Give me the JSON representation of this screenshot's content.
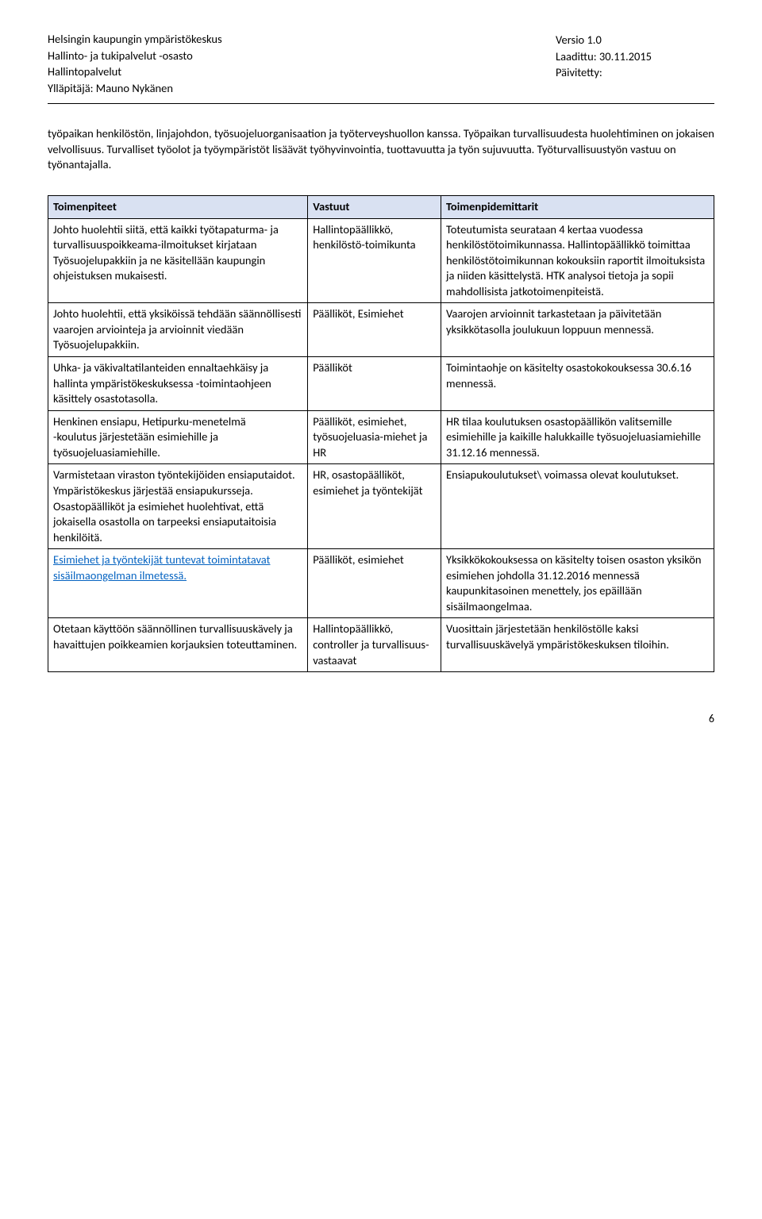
{
  "header": {
    "left": [
      "Helsingin kaupungin ympäristökeskus",
      "Hallinto- ja tukipalvelut -osasto",
      "Hallintopalvelut",
      "Ylläpitäjä: Mauno Nykänen"
    ],
    "right": [
      "",
      "Versio 1.0",
      "Laadittu: 30.11.2015",
      "Päivitetty:"
    ]
  },
  "intro": "työpaikan henkilöstön, linjajohdon, työsuojeluorganisaation ja työterveyshuollon kanssa. Työpaikan turvallisuudesta huolehtiminen on jokaisen velvollisuus. Turvalliset työolot ja työympäristöt lisäävät työhyvinvointia, tuottavuutta ja työn sujuvuutta. Työturvallisuustyön vastuu on työnantajalla.",
  "table": {
    "headers": [
      "Toimenpiteet",
      "Vastuut",
      "Toimenpidemittarit"
    ],
    "rows": [
      {
        "a": "Johto huolehtii siitä, että kaikki työtapaturma- ja turvallisuuspoikkeama-ilmoitukset kirjataan Työsuojelupakkiin ja ne käsitellään kaupungin ohjeistuksen mukaisesti.",
        "b": "Hallintopäällikkö, henkilöstö-toimikunta",
        "c": "Toteutumista seurataan 4 kertaa vuodessa henkilöstötoimikunnassa. Hallintopäällikkö toimittaa henkilöstötoimikunnan kokouksiin raportit ilmoituksista ja niiden käsittelystä. HTK analysoi tietoja ja sopii mahdollisista jatkotoimenpiteistä."
      },
      {
        "a": "Johto huolehtii, että yksiköissä tehdään säännöllisesti vaarojen arviointeja ja arvioinnit viedään Työsuojelupakkiin.",
        "b": "Päälliköt, Esimiehet",
        "c": "Vaarojen arvioinnit tarkastetaan ja päivitetään yksikkötasolla joulukuun loppuun mennessä."
      },
      {
        "a": "Uhka- ja väkivaltatilanteiden ennaltaehkäisy ja hallinta ympäristökeskuksessa -toimintaohjeen käsittely osastotasolla.",
        "b": "Päälliköt",
        "c": "Toimintaohje on käsitelty osastokokouksessa 30.6.16 mennessä."
      },
      {
        "a": "Henkinen ensiapu, Hetipurku-menetelmä\n-koulutus järjestetään esimiehille ja työsuojeluasiamiehille.",
        "b": "Päälliköt, esimiehet, työsuojeluasia-miehet ja HR",
        "c": "HR tilaa koulutuksen osastopäällikön valitsemille esimiehille ja kaikille halukkaille työsuojeluasiamiehille 31.12.16 mennessä."
      },
      {
        "a": "Varmistetaan viraston työntekijöiden ensiaputaidot. Ympäristökeskus järjestää ensiapukursseja. Osastopäälliköt ja esimiehet huolehtivat, että jokaisella osastolla on tarpeeksi ensiaputaitoisia henkilöitä.",
        "b": "HR, osastopäälliköt, esimiehet ja työntekijät",
        "c": "Ensiapukoulutukset\\ voimassa olevat koulutukset."
      },
      {
        "a_link": "Esimiehet ja työntekijät tuntevat toimintatavat sisäilmaongelman ilmetessä.",
        "b": "Päälliköt, esimiehet",
        "c": "Yksikkökokouksessa on käsitelty toisen osaston yksikön esimiehen johdolla 31.12.2016 mennessä kaupunkitasoinen menettely, jos epäillään sisäilmaongelmaa."
      },
      {
        "a": "Otetaan käyttöön säännöllinen turvallisuuskävely ja havaittujen poikkeamien korjauksien toteuttaminen.",
        "b": "Hallintopäällikkö, controller ja turvallisuus-vastaavat",
        "c": "Vuosittain järjestetään henkilöstölle kaksi turvallisuuskävelyä ympäristökeskuksen tiloihin."
      }
    ]
  },
  "page_number": "6"
}
